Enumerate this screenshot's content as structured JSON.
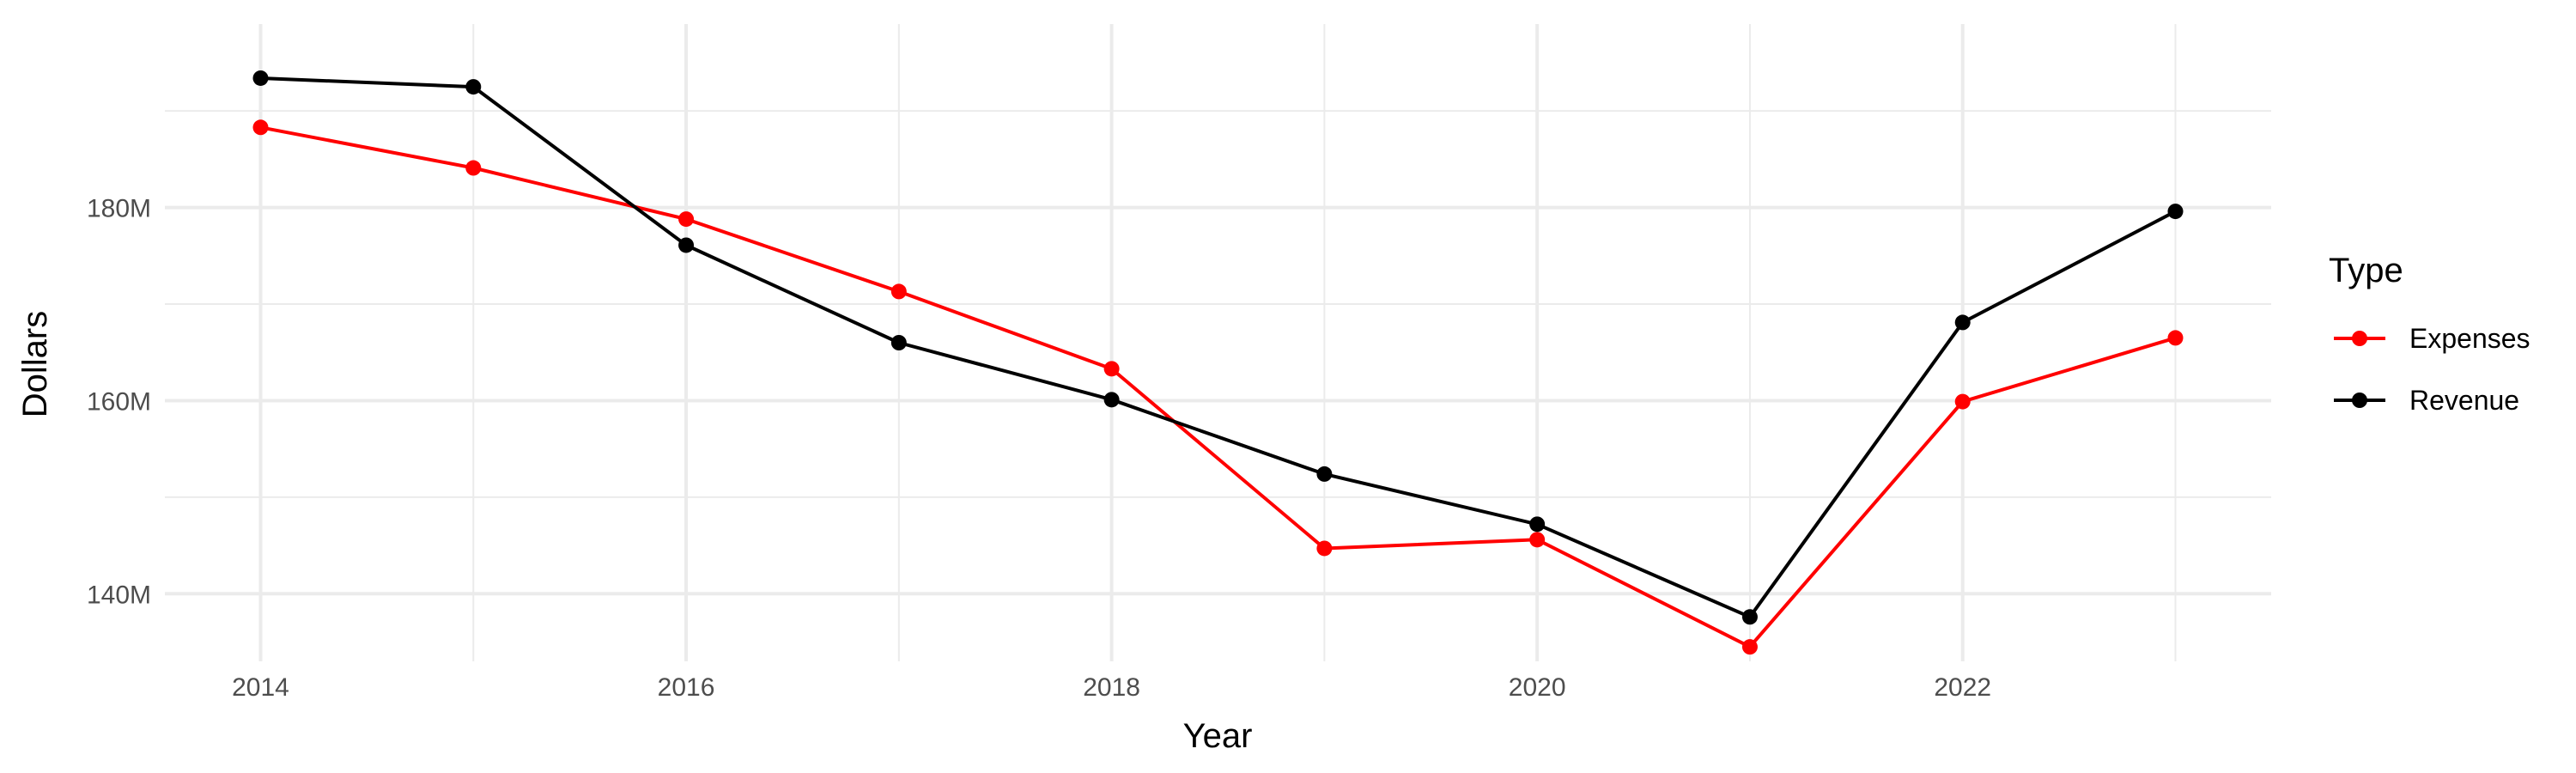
{
  "chart_data": {
    "type": "line",
    "x": [
      2014,
      2015,
      2016,
      2017,
      2018,
      2019,
      2020,
      2021,
      2022,
      2023
    ],
    "series": [
      {
        "name": "Expenses",
        "color": "#ff0000",
        "values": [
          188.3,
          184.1,
          178.8,
          171.3,
          163.3,
          144.7,
          145.6,
          134.5,
          159.9,
          166.5
        ]
      },
      {
        "name": "Revenue",
        "color": "#000000",
        "values": [
          193.4,
          192.5,
          176.1,
          166.0,
          160.1,
          152.4,
          147.2,
          137.6,
          168.1,
          179.6
        ]
      }
    ],
    "xlabel": "Year",
    "ylabel": "Dollars",
    "xticks": [
      2014,
      2016,
      2018,
      2020,
      2022
    ],
    "xtick_labels": [
      "2014",
      "2016",
      "2018",
      "2020",
      "2022"
    ],
    "yticks": [
      140,
      160,
      180
    ],
    "ytick_labels": [
      "140M",
      "160M",
      "180M"
    ],
    "xlim": [
      2013.55,
      2023.45
    ],
    "ylim": [
      133.0,
      199.0
    ],
    "grid": true,
    "legend": {
      "title": "Type",
      "position": "right"
    }
  }
}
